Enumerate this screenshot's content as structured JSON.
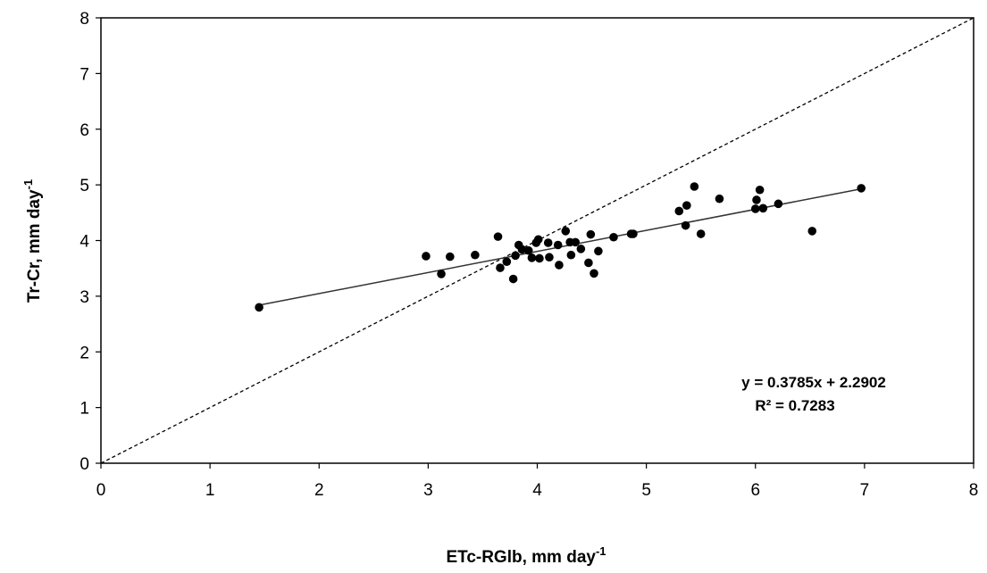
{
  "chart_data": {
    "type": "scatter",
    "title": "",
    "xlabel": "ETc-RGlb, mm day",
    "xlabel_sup": "-1",
    "ylabel": "Tr-Cr, mm day",
    "ylabel_sup": "-1",
    "xlim": [
      0,
      8
    ],
    "ylim": [
      0,
      8
    ],
    "xticks": [
      "0",
      "1",
      "2",
      "3",
      "4",
      "5",
      "6",
      "7",
      "8"
    ],
    "yticks": [
      "0",
      "1",
      "2",
      "3",
      "4",
      "5",
      "6",
      "7",
      "8"
    ],
    "grid": false,
    "legend": "none",
    "series": [
      {
        "marker": "circle",
        "color": "#000000",
        "points": [
          [
            1.45,
            2.8
          ],
          [
            2.98,
            3.72
          ],
          [
            3.12,
            3.4
          ],
          [
            3.2,
            3.71
          ],
          [
            3.43,
            3.74
          ],
          [
            3.64,
            4.07
          ],
          [
            3.66,
            3.51
          ],
          [
            3.72,
            3.62
          ],
          [
            3.78,
            3.31
          ],
          [
            3.8,
            3.73
          ],
          [
            3.83,
            3.92
          ],
          [
            3.86,
            3.84
          ],
          [
            3.92,
            3.82
          ],
          [
            3.95,
            3.69
          ],
          [
            3.99,
            3.96
          ],
          [
            4.01,
            4.02
          ],
          [
            4.02,
            3.68
          ],
          [
            4.1,
            3.96
          ],
          [
            4.11,
            3.7
          ],
          [
            4.19,
            3.92
          ],
          [
            4.2,
            3.56
          ],
          [
            4.26,
            4.17
          ],
          [
            4.3,
            3.97
          ],
          [
            4.31,
            3.74
          ],
          [
            4.35,
            3.97
          ],
          [
            4.4,
            3.85
          ],
          [
            4.47,
            3.6
          ],
          [
            4.49,
            4.11
          ],
          [
            4.52,
            3.41
          ],
          [
            4.56,
            3.81
          ],
          [
            4.7,
            4.06
          ],
          [
            4.86,
            4.12
          ],
          [
            4.88,
            4.12
          ],
          [
            5.3,
            4.53
          ],
          [
            5.36,
            4.27
          ],
          [
            5.37,
            4.63
          ],
          [
            5.44,
            4.97
          ],
          [
            5.5,
            4.12
          ],
          [
            5.67,
            4.75
          ],
          [
            6.0,
            4.57
          ],
          [
            6.01,
            4.73
          ],
          [
            6.04,
            4.91
          ],
          [
            6.07,
            4.58
          ],
          [
            6.21,
            4.66
          ],
          [
            6.52,
            4.17
          ],
          [
            6.97,
            4.94
          ]
        ]
      }
    ],
    "trendline": {
      "slope": 0.3785,
      "intercept": 2.2902,
      "x_range": [
        1.45,
        6.97
      ],
      "style": "solid"
    },
    "reference_line": {
      "from": [
        0,
        0
      ],
      "to": [
        8,
        8
      ],
      "style": "dashed",
      "label": ""
    },
    "annotations": {
      "equation": "y = 0.3785x + 2.2902",
      "r_squared": "R² = 0.7283"
    }
  }
}
